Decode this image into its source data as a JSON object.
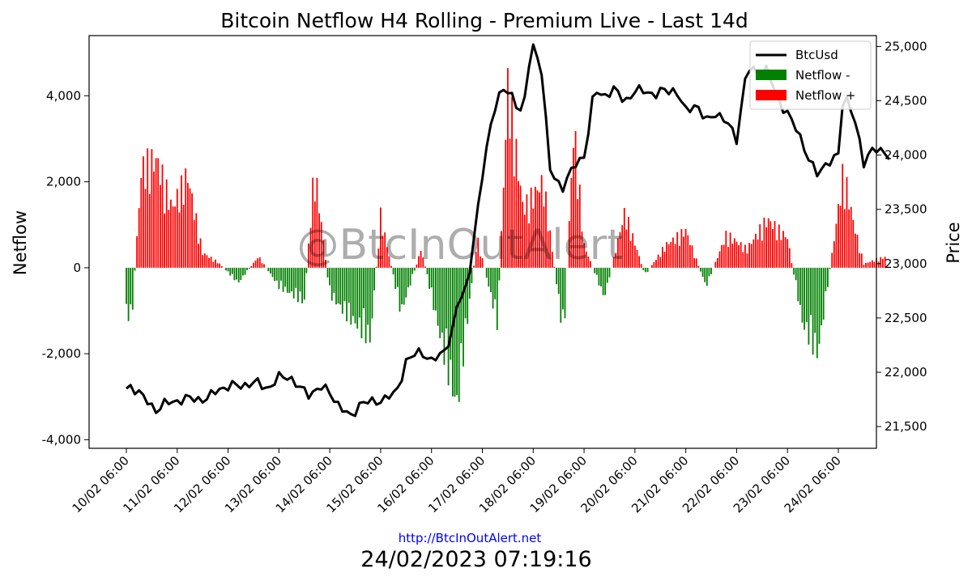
{
  "chart_data": {
    "type": "bar",
    "title": "Bitcoin Netflow H4 Rolling - Premium Live - Last 14d",
    "ylabel_left": "Netflow",
    "ylabel_right": "Price",
    "x_ticks": [
      "10/02 06:00",
      "11/02 06:00",
      "12/02 06:00",
      "13/02 06:00",
      "14/02 06:00",
      "15/02 06:00",
      "16/02 06:00",
      "17/02 06:00",
      "18/02 06:00",
      "19/02 06:00",
      "20/02 06:00",
      "21/02 06:00",
      "22/02 06:00",
      "23/02 06:00",
      "24/02 06:00"
    ],
    "left_ylim": [
      -4200,
      5400
    ],
    "left_ticks": [
      -4000,
      -2000,
      0,
      2000,
      4000
    ],
    "left_tick_labels": [
      "-4,000",
      "-2,000",
      "0",
      "2,000",
      "4,000"
    ],
    "right_ylim": [
      21300,
      25100
    ],
    "right_ticks": [
      21500,
      22000,
      22500,
      23000,
      23500,
      24000,
      24500,
      25000
    ],
    "right_tick_labels": [
      "21,500",
      "22,000",
      "22,500",
      "23,000",
      "23,500",
      "24,000",
      "24,500",
      "25,000"
    ],
    "legend": [
      "BtcUsd",
      "Netflow -",
      "Netflow +"
    ],
    "legend_position": "top-right",
    "colors": {
      "price": "#000000",
      "negative": "#008000",
      "positive": "#ff0000"
    },
    "netflow_anchors": [
      [
        0,
        -1100
      ],
      [
        0.1,
        -1500
      ],
      [
        0.3,
        2700
      ],
      [
        0.6,
        2900
      ],
      [
        0.9,
        1600
      ],
      [
        1.2,
        2500
      ],
      [
        1.5,
        400
      ],
      [
        1.8,
        150
      ],
      [
        2.2,
        -400
      ],
      [
        2.6,
        300
      ],
      [
        3.0,
        -500
      ],
      [
        3.5,
        -900
      ],
      [
        3.7,
        2700
      ],
      [
        4.0,
        -700
      ],
      [
        4.3,
        -1200
      ],
      [
        4.8,
        -1900
      ],
      [
        5.0,
        1400
      ],
      [
        5.4,
        -1200
      ],
      [
        5.8,
        500
      ],
      [
        6.2,
        -2000
      ],
      [
        6.5,
        -3700
      ],
      [
        6.9,
        800
      ],
      [
        7.3,
        -1500
      ],
      [
        7.5,
        4900
      ],
      [
        7.8,
        1600
      ],
      [
        8.2,
        2300
      ],
      [
        8.6,
        -1900
      ],
      [
        8.8,
        3800
      ],
      [
        9.0,
        600
      ],
      [
        9.4,
        -800
      ],
      [
        9.8,
        1500
      ],
      [
        10.2,
        -200
      ],
      [
        10.6,
        600
      ],
      [
        11.0,
        1000
      ],
      [
        11.4,
        -500
      ],
      [
        11.8,
        900
      ],
      [
        12.2,
        500
      ],
      [
        12.6,
        1300
      ],
      [
        13.0,
        800
      ],
      [
        13.3,
        -1500
      ],
      [
        13.6,
        -2300
      ],
      [
        13.9,
        600
      ],
      [
        14.1,
        2600
      ],
      [
        14.3,
        1200
      ],
      [
        14.5,
        100
      ],
      [
        14.7,
        200
      ],
      [
        14.95,
        300
      ]
    ],
    "price_anchors": [
      [
        0,
        21850
      ],
      [
        0.1,
        21880
      ],
      [
        0.3,
        21780
      ],
      [
        0.6,
        21650
      ],
      [
        0.8,
        21720
      ],
      [
        1.0,
        21740
      ],
      [
        1.3,
        21760
      ],
      [
        1.6,
        21750
      ],
      [
        1.8,
        21850
      ],
      [
        2.2,
        21880
      ],
      [
        2.6,
        21900
      ],
      [
        2.8,
        21850
      ],
      [
        3.0,
        21950
      ],
      [
        3.2,
        21970
      ],
      [
        3.4,
        21850
      ],
      [
        3.6,
        21800
      ],
      [
        3.8,
        21860
      ],
      [
        4.0,
        21820
      ],
      [
        4.2,
        21680
      ],
      [
        4.4,
        21580
      ],
      [
        4.6,
        21720
      ],
      [
        4.8,
        21720
      ],
      [
        5.1,
        21760
      ],
      [
        5.3,
        21800
      ],
      [
        5.5,
        22100
      ],
      [
        5.8,
        22200
      ],
      [
        6.0,
        22100
      ],
      [
        6.2,
        22160
      ],
      [
        6.4,
        22350
      ],
      [
        6.5,
        22600
      ],
      [
        6.7,
        22800
      ],
      [
        6.9,
        23450
      ],
      [
        7.0,
        23800
      ],
      [
        7.2,
        24400
      ],
      [
        7.4,
        24600
      ],
      [
        7.6,
        24550
      ],
      [
        7.8,
        24350
      ],
      [
        7.9,
        24800
      ],
      [
        8.0,
        25000
      ],
      [
        8.1,
        24900
      ],
      [
        8.2,
        24700
      ],
      [
        8.3,
        23900
      ],
      [
        8.4,
        23800
      ],
      [
        8.6,
        23700
      ],
      [
        8.8,
        23900
      ],
      [
        9.0,
        24000
      ],
      [
        9.1,
        24250
      ],
      [
        9.2,
        24600
      ],
      [
        9.4,
        24550
      ],
      [
        9.6,
        24600
      ],
      [
        9.8,
        24500
      ],
      [
        10.0,
        24580
      ],
      [
        10.2,
        24600
      ],
      [
        10.4,
        24550
      ],
      [
        10.6,
        24600
      ],
      [
        10.8,
        24600
      ],
      [
        11.0,
        24400
      ],
      [
        11.2,
        24480
      ],
      [
        11.4,
        24300
      ],
      [
        11.6,
        24400
      ],
      [
        11.8,
        24300
      ],
      [
        12.0,
        24150
      ],
      [
        12.2,
        24800
      ],
      [
        12.4,
        24750
      ],
      [
        12.6,
        24800
      ],
      [
        12.8,
        24500
      ],
      [
        13.0,
        24400
      ],
      [
        13.2,
        24200
      ],
      [
        13.4,
        24000
      ],
      [
        13.6,
        23800
      ],
      [
        13.8,
        23950
      ],
      [
        14.0,
        24000
      ],
      [
        14.1,
        24550
      ],
      [
        14.3,
        24400
      ],
      [
        14.5,
        23900
      ],
      [
        14.7,
        24100
      ],
      [
        14.9,
        24000
      ],
      [
        15.0,
        23970
      ]
    ],
    "watermark": "@BtcInOutAlert",
    "footer_url": "http://BtcInOutAlert.net",
    "footer_timestamp": "24/02/2023 07:19:16"
  }
}
